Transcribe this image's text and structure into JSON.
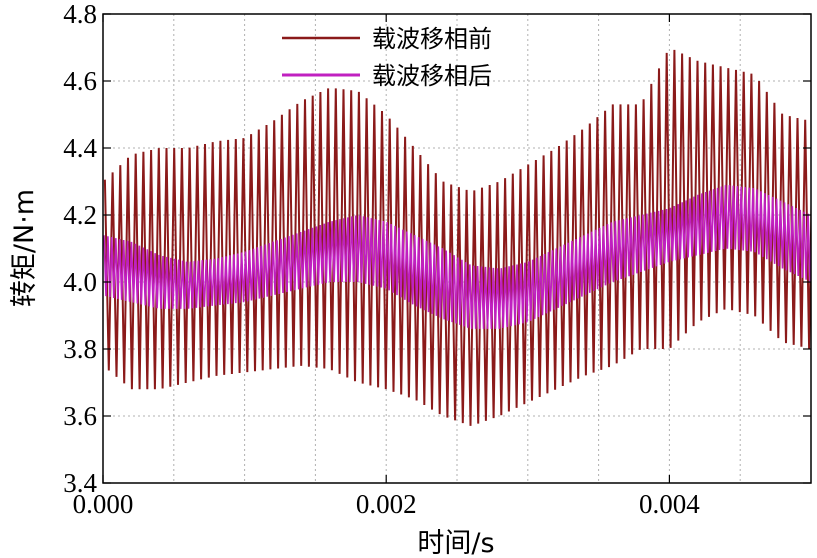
{
  "chart_data": {
    "type": "line",
    "xlabel": "时间/s",
    "ylabel": "转矩/N·m",
    "xlim": [
      0.0,
      0.005
    ],
    "ylim": [
      3.4,
      4.8
    ],
    "xticks": [
      "0.000",
      "0.002",
      "0.004"
    ],
    "xtick_values": [
      0.0,
      0.002,
      0.004
    ],
    "yticks": [
      "3.4",
      "3.6",
      "3.8",
      "4.0",
      "4.2",
      "4.4",
      "4.6",
      "4.8"
    ],
    "ytick_values": [
      3.4,
      3.6,
      3.8,
      4.0,
      4.2,
      4.4,
      4.6,
      4.8
    ],
    "grid": true,
    "legend_position": "top-center",
    "series": [
      {
        "name": "载波移相前",
        "color": "#8b1a1a",
        "x": [
          0.0,
          0.0002,
          0.0004,
          0.0006,
          0.0008,
          0.001,
          0.0012,
          0.0014,
          0.0016,
          0.0018,
          0.002,
          0.0022,
          0.0024,
          0.0026,
          0.0028,
          0.003,
          0.0032,
          0.0034,
          0.0036,
          0.0038,
          0.004,
          0.0042,
          0.0044,
          0.0046,
          0.0048,
          0.005
        ],
        "upper": [
          4.3,
          4.38,
          4.4,
          4.4,
          4.42,
          4.43,
          4.48,
          4.54,
          4.58,
          4.57,
          4.5,
          4.4,
          4.3,
          4.27,
          4.3,
          4.35,
          4.4,
          4.46,
          4.53,
          4.53,
          4.7,
          4.66,
          4.64,
          4.62,
          4.5,
          4.48
        ],
        "lower": [
          3.75,
          3.68,
          3.68,
          3.7,
          3.72,
          3.73,
          3.74,
          3.75,
          3.74,
          3.7,
          3.68,
          3.65,
          3.6,
          3.57,
          3.6,
          3.64,
          3.68,
          3.72,
          3.75,
          3.8,
          3.8,
          3.88,
          3.92,
          3.9,
          3.82,
          3.8
        ]
      },
      {
        "name": "载波移相后",
        "color": "#c020c0",
        "x": [
          0.0,
          0.0002,
          0.0004,
          0.0006,
          0.0008,
          0.001,
          0.0012,
          0.0014,
          0.0016,
          0.0018,
          0.002,
          0.0022,
          0.0024,
          0.0026,
          0.0028,
          0.003,
          0.0032,
          0.0034,
          0.0036,
          0.0038,
          0.004,
          0.0042,
          0.0044,
          0.0046,
          0.0048,
          0.005
        ],
        "upper": [
          4.14,
          4.12,
          4.08,
          4.06,
          4.07,
          4.09,
          4.12,
          4.15,
          4.18,
          4.2,
          4.18,
          4.14,
          4.1,
          4.05,
          4.04,
          4.06,
          4.1,
          4.14,
          4.18,
          4.2,
          4.22,
          4.26,
          4.29,
          4.28,
          4.24,
          4.2
        ],
        "lower": [
          3.96,
          3.94,
          3.92,
          3.92,
          3.93,
          3.94,
          3.96,
          3.98,
          4.0,
          4.0,
          3.98,
          3.93,
          3.89,
          3.86,
          3.86,
          3.88,
          3.92,
          3.96,
          4.0,
          4.03,
          4.06,
          4.08,
          4.1,
          4.09,
          4.04,
          4.0
        ]
      }
    ]
  }
}
